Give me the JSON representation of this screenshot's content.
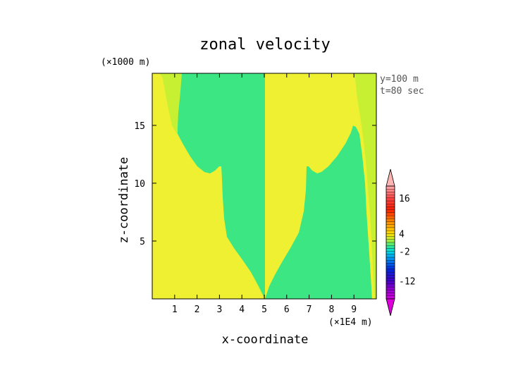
{
  "chart_data": {
    "type": "heatmap",
    "title": "zonal velocity",
    "xlabel": "x-coordinate",
    "ylabel": "z-coordinate",
    "x_unit": "(×1E4 m)",
    "y_unit": "(×1000 m)",
    "annotations": [
      "y=100 m",
      "t=80 sec"
    ],
    "xlim": [
      0,
      10
    ],
    "ylim": [
      0,
      19.5
    ],
    "xticks": [
      1,
      2,
      3,
      4,
      5,
      6,
      7,
      8,
      9
    ],
    "yticks": [
      5,
      10,
      15
    ],
    "xtick_labels": [
      "1",
      "2",
      "3",
      "4",
      "5",
      "6",
      "7",
      "8",
      "9"
    ],
    "ytick_labels": [
      "5",
      "10",
      "15"
    ],
    "colors": {
      "yellow": "#f0f032",
      "green": "#3ce682",
      "lime": "#c8f032"
    },
    "colorbar": {
      "ticks": [
        {
          "value": 16,
          "label": "16"
        },
        {
          "value": 4,
          "label": "4"
        },
        {
          "value": -2,
          "label": "-2"
        },
        {
          "value": -12,
          "label": "-12"
        }
      ],
      "range": [
        -18,
        20
      ],
      "extend": "both"
    }
  }
}
